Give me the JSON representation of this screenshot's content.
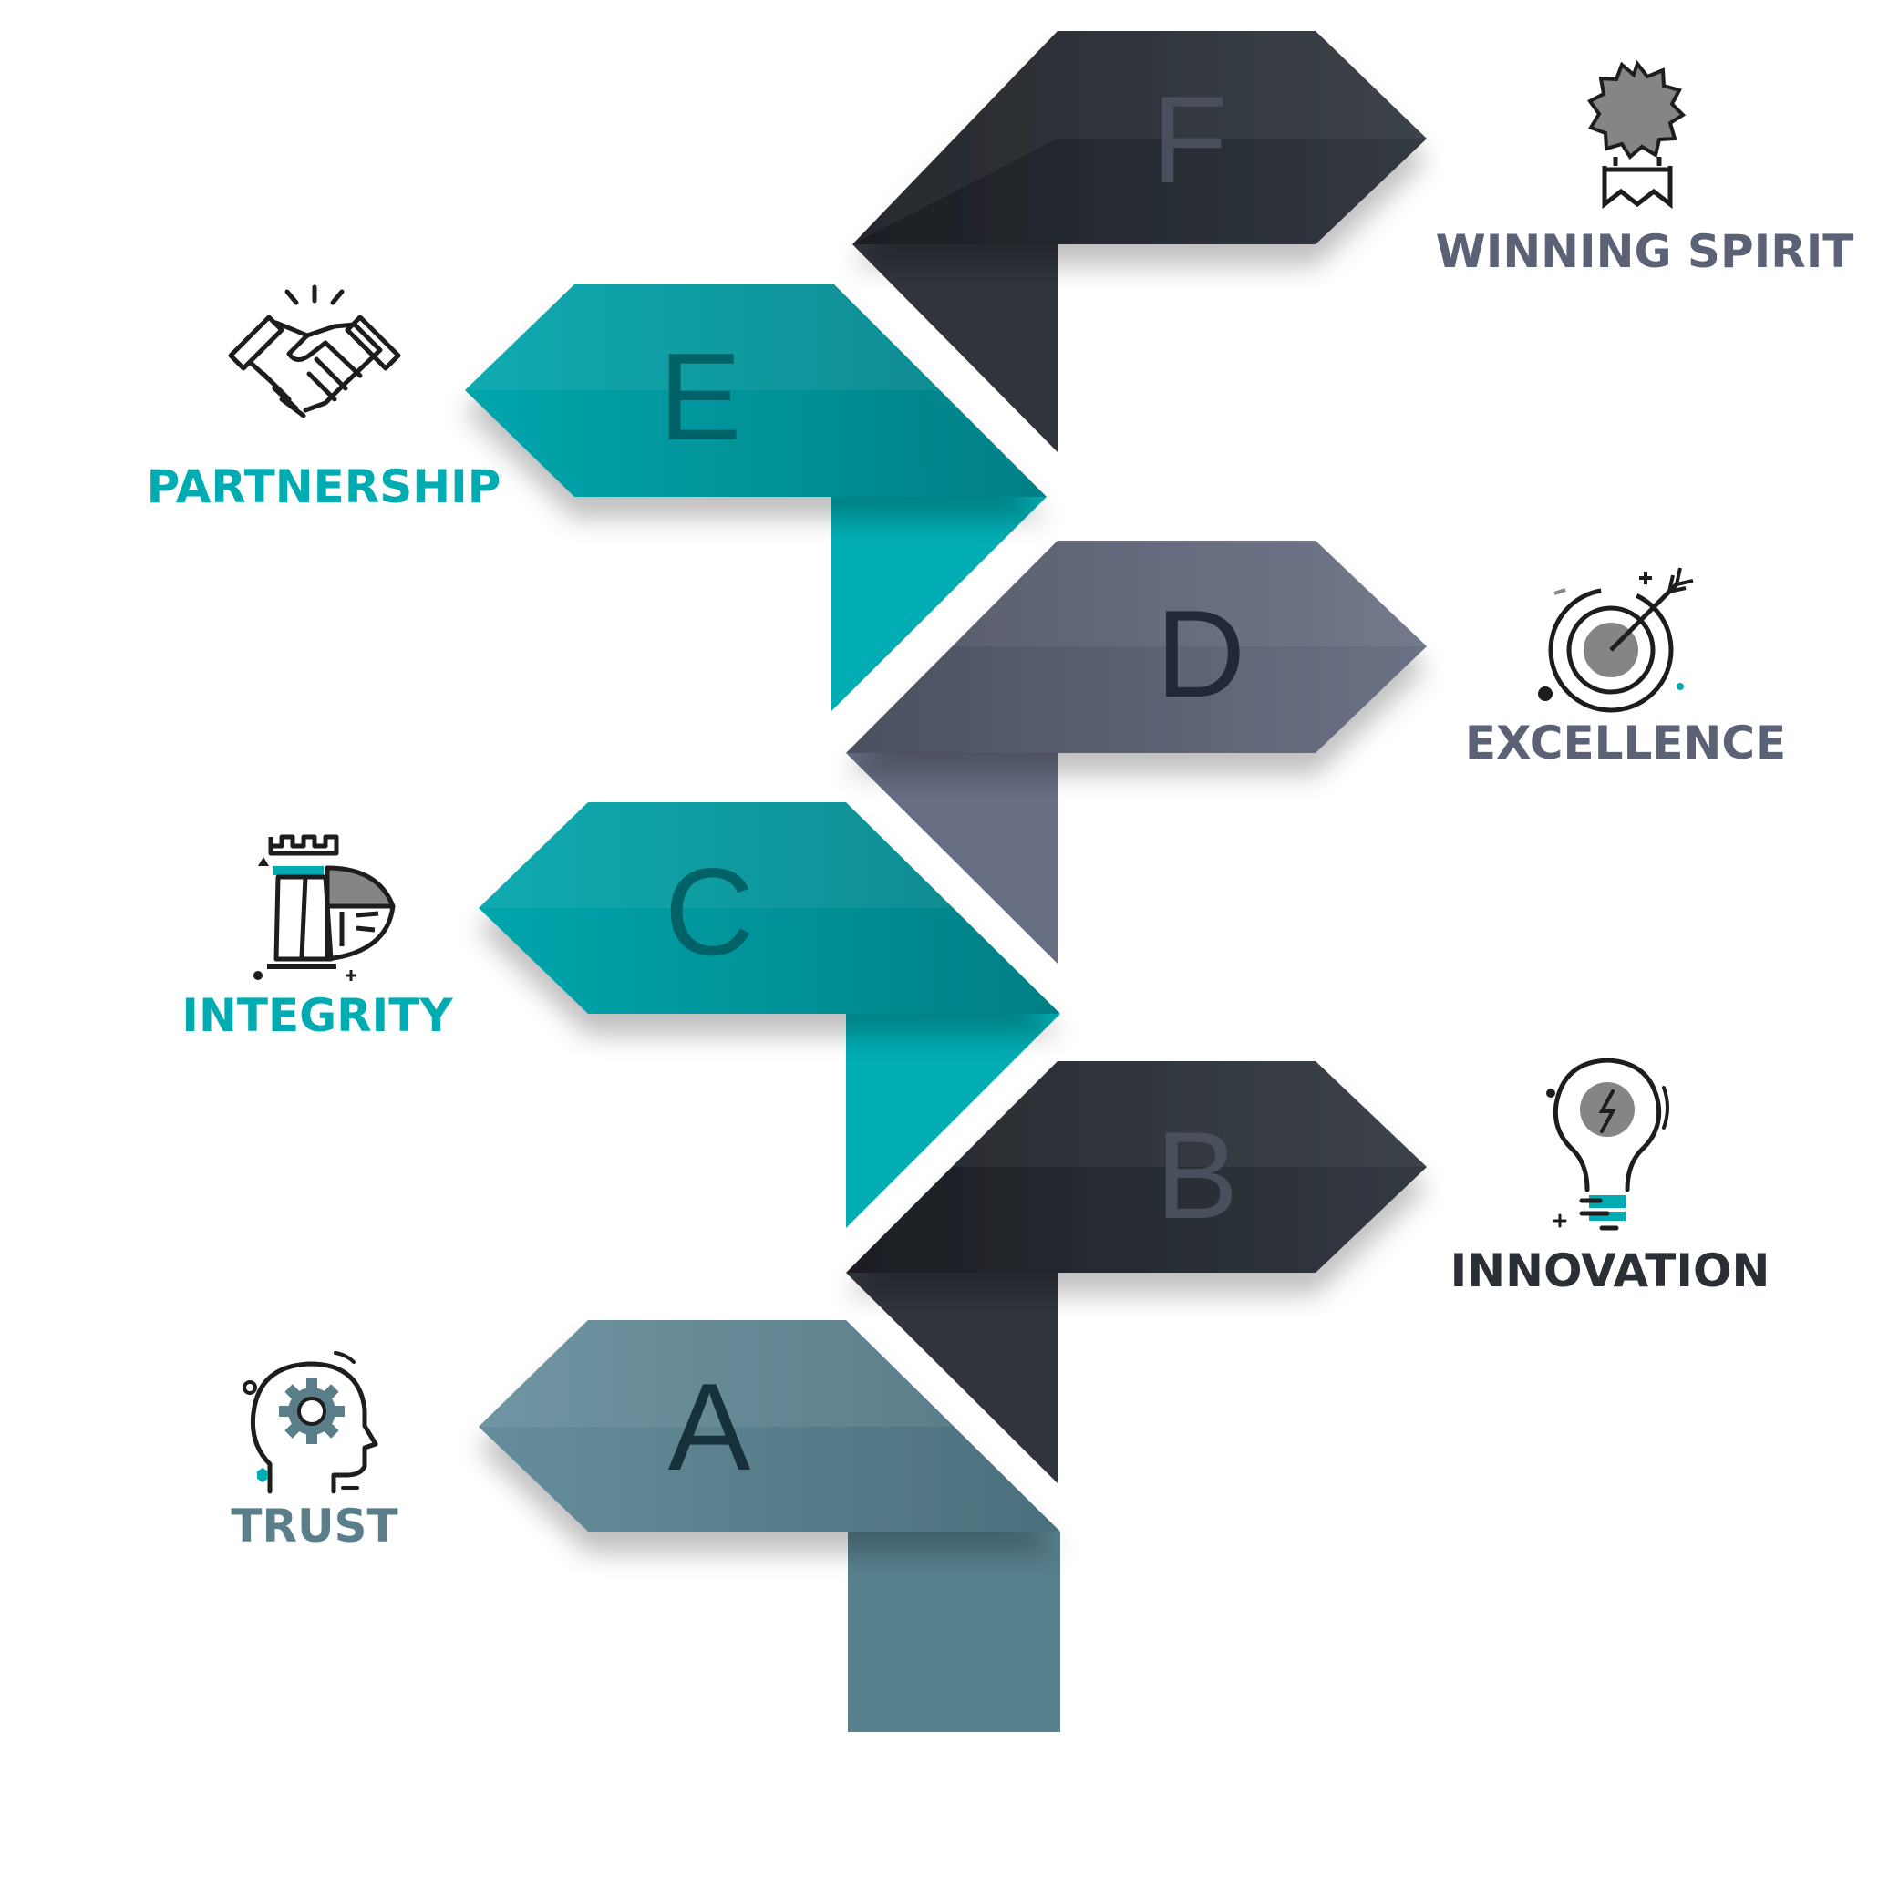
{
  "colors": {
    "teal": "#00abb1",
    "teal_dark": "#00878c",
    "slate_blue": "#5a7e8a",
    "charcoal": "#2a2e35",
    "gray_blue": "#5b6275",
    "icon_gray": "#858585",
    "icon_outline": "#1d1d1b"
  },
  "steps": [
    {
      "letter": "A",
      "label": "TRUST",
      "icon": "head-gear-icon",
      "color": "#5a7e8a"
    },
    {
      "letter": "B",
      "label": "INNOVATION",
      "icon": "lightbulb-icon",
      "color": "#2a2e35"
    },
    {
      "letter": "C",
      "label": "INTEGRITY",
      "icon": "chess-rook-shield-icon",
      "color": "#00abb1"
    },
    {
      "letter": "D",
      "label": "EXCELLENCE",
      "icon": "target-arrow-icon",
      "color": "#5b6275"
    },
    {
      "letter": "E",
      "label": "PARTNERSHIP",
      "icon": "handshake-icon",
      "color": "#00abb1"
    },
    {
      "letter": "F",
      "label": "WINNING SPIRIT",
      "icon": "award-badge-icon",
      "color": "#2a2e35"
    }
  ]
}
